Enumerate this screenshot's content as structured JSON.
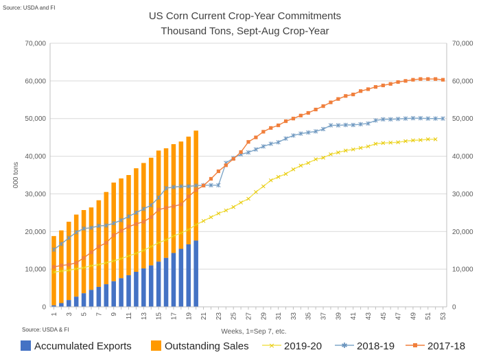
{
  "source_top": "Source: USDA and  FI",
  "source_bottom": "Source: USDA & FI",
  "chart_data": {
    "type": "bar",
    "title": "US Corn Current Crop-Year Commitments",
    "subtitle": "Thousand Tons, Sept-Aug Crop-Year",
    "xlabel": "Weeks, 1=Sep 7, etc.",
    "ylabel": "000 tons",
    "ylim": [
      0,
      70000
    ],
    "yticks": [
      "0",
      "10,000",
      "20,000",
      "30,000",
      "40,000",
      "50,000",
      "60,000",
      "70,000"
    ],
    "y2ticks": [
      "0",
      "10,000",
      "20,000",
      "30,000",
      "40,000",
      "50,000",
      "60,000",
      "70,000"
    ],
    "xtick_labels": [
      "1",
      "3",
      "5",
      "7",
      "9",
      "11",
      "13",
      "15",
      "17",
      "19",
      "21",
      "23",
      "25",
      "27",
      "29",
      "31",
      "33",
      "35",
      "37",
      "39",
      "41",
      "43",
      "45",
      "47",
      "49",
      "51",
      "53"
    ],
    "grid": true,
    "legend_position": "bottom",
    "colors": {
      "accumulated_exports": "#4472C4",
      "outstanding_sales": "#FF9900",
      "y2019_20": "#F2E250",
      "y2018_19": "#7FA7C9",
      "y2017_18": "#F07F3C",
      "grid": "#D9D9D9"
    },
    "legend": [
      "Accumulated Exports",
      "Outstanding Sales",
      "2019-20",
      "2018-19",
      "2017-18"
    ],
    "weeks": [
      1,
      2,
      3,
      4,
      5,
      6,
      7,
      8,
      9,
      10,
      11,
      12,
      13,
      14,
      15,
      16,
      17,
      18,
      19,
      20,
      21,
      22,
      23,
      24,
      25,
      26,
      27,
      28,
      29,
      30,
      31,
      32,
      33,
      34,
      35,
      36,
      37,
      38,
      39,
      40,
      41,
      42,
      43,
      44,
      45,
      46,
      47,
      48,
      49,
      50,
      51,
      52,
      53
    ],
    "bars": {
      "weeks": [
        1,
        2,
        3,
        4,
        5,
        6,
        7,
        8,
        9,
        10,
        11,
        12,
        13,
        14,
        15,
        16,
        17,
        18,
        19,
        20
      ],
      "accumulated_exports": [
        400,
        1000,
        1800,
        2700,
        3600,
        4500,
        5300,
        6000,
        6800,
        7600,
        8400,
        9300,
        10200,
        11000,
        12000,
        13000,
        14300,
        15400,
        16600,
        17600
      ],
      "total_commitments": [
        18800,
        20300,
        22600,
        24500,
        25700,
        26400,
        28300,
        30500,
        33000,
        34100,
        35000,
        36800,
        38200,
        39600,
        41500,
        42100,
        43200,
        43900,
        45200,
        46800
      ]
    },
    "series": [
      {
        "name": "2019-20",
        "values": [
          9200,
          9500,
          9700,
          10100,
          10400,
          10900,
          11200,
          11700,
          12200,
          12800,
          13500,
          14200,
          15000,
          16000,
          17000,
          17800,
          18800,
          19600,
          20500,
          21800,
          22800,
          23800,
          24800,
          25600,
          26500,
          27700,
          28700,
          30500,
          32000,
          33600,
          34500,
          35300,
          36500,
          37500,
          38200,
          39200,
          39600,
          40500,
          41000,
          41500,
          41800,
          42200,
          42600,
          43300,
          43500,
          43600,
          43700,
          44000,
          44200,
          44300,
          44500,
          44500,
          null
        ]
      },
      {
        "name": "2018-19",
        "values": [
          15200,
          16700,
          18300,
          19800,
          20800,
          21000,
          21500,
          21600,
          22200,
          23000,
          24000,
          25000,
          26000,
          27000,
          29000,
          31500,
          31800,
          32000,
          32000,
          32200,
          32300,
          32300,
          32300,
          38200,
          39500,
          40500,
          41000,
          41800,
          42600,
          43300,
          43700,
          44700,
          45500,
          46000,
          46300,
          46600,
          47200,
          48200,
          48200,
          48300,
          48300,
          48500,
          48700,
          49500,
          49800,
          49800,
          49900,
          50000,
          50100,
          50100,
          50000,
          50000,
          50000
        ]
      },
      {
        "name": "2017-18",
        "values": [
          10600,
          11000,
          11200,
          11700,
          13000,
          14500,
          16000,
          17000,
          19000,
          20200,
          21300,
          22000,
          22600,
          23800,
          25800,
          26300,
          26700,
          27200,
          29300,
          31000,
          32200,
          34000,
          36000,
          37600,
          39300,
          41100,
          43800,
          45000,
          46500,
          47500,
          48200,
          49300,
          50000,
          50800,
          51500,
          52400,
          53300,
          54300,
          55200,
          56000,
          56400,
          57300,
          57800,
          58400,
          58800,
          59200,
          59700,
          60000,
          60300,
          60500,
          60500,
          60500,
          60300
        ]
      }
    ]
  }
}
